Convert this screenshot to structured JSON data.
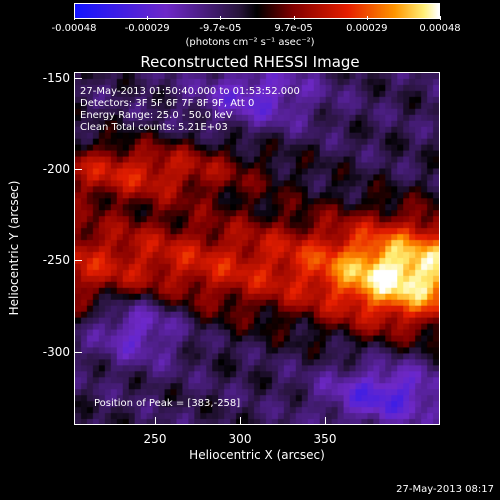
{
  "colorbar": {
    "ticks": [
      "-0.00048",
      "-0.00029",
      "-9.7e-05",
      "9.7e-05",
      "0.00029",
      "0.00048"
    ],
    "units": "(photons cm⁻² s⁻¹ asec⁻²)"
  },
  "plot": {
    "title": "Reconstructed RHESSI Image",
    "info": [
      "27-May-2013 01:50:40.000 to 01:53:52.000",
      "Detectors: 3F 5F 6F 7F 8F 9F, Att 0",
      "Energy Range: 25.0 - 50.0 keV",
      "Clean    Total counts: 5.21E+03"
    ],
    "peak": "Position of Peak = [383,-258]",
    "xlabel": "Heliocentric X (arcsec)",
    "ylabel": "Heliocentric Y (arcsec)",
    "xticks": [
      "250",
      "300",
      "350"
    ],
    "yticks": [
      "-150",
      "-200",
      "-250",
      "-300"
    ]
  },
  "timestamp": "27-May-2013 08:17",
  "colors": {
    "background": "#000000",
    "text": "#ffffff"
  }
}
